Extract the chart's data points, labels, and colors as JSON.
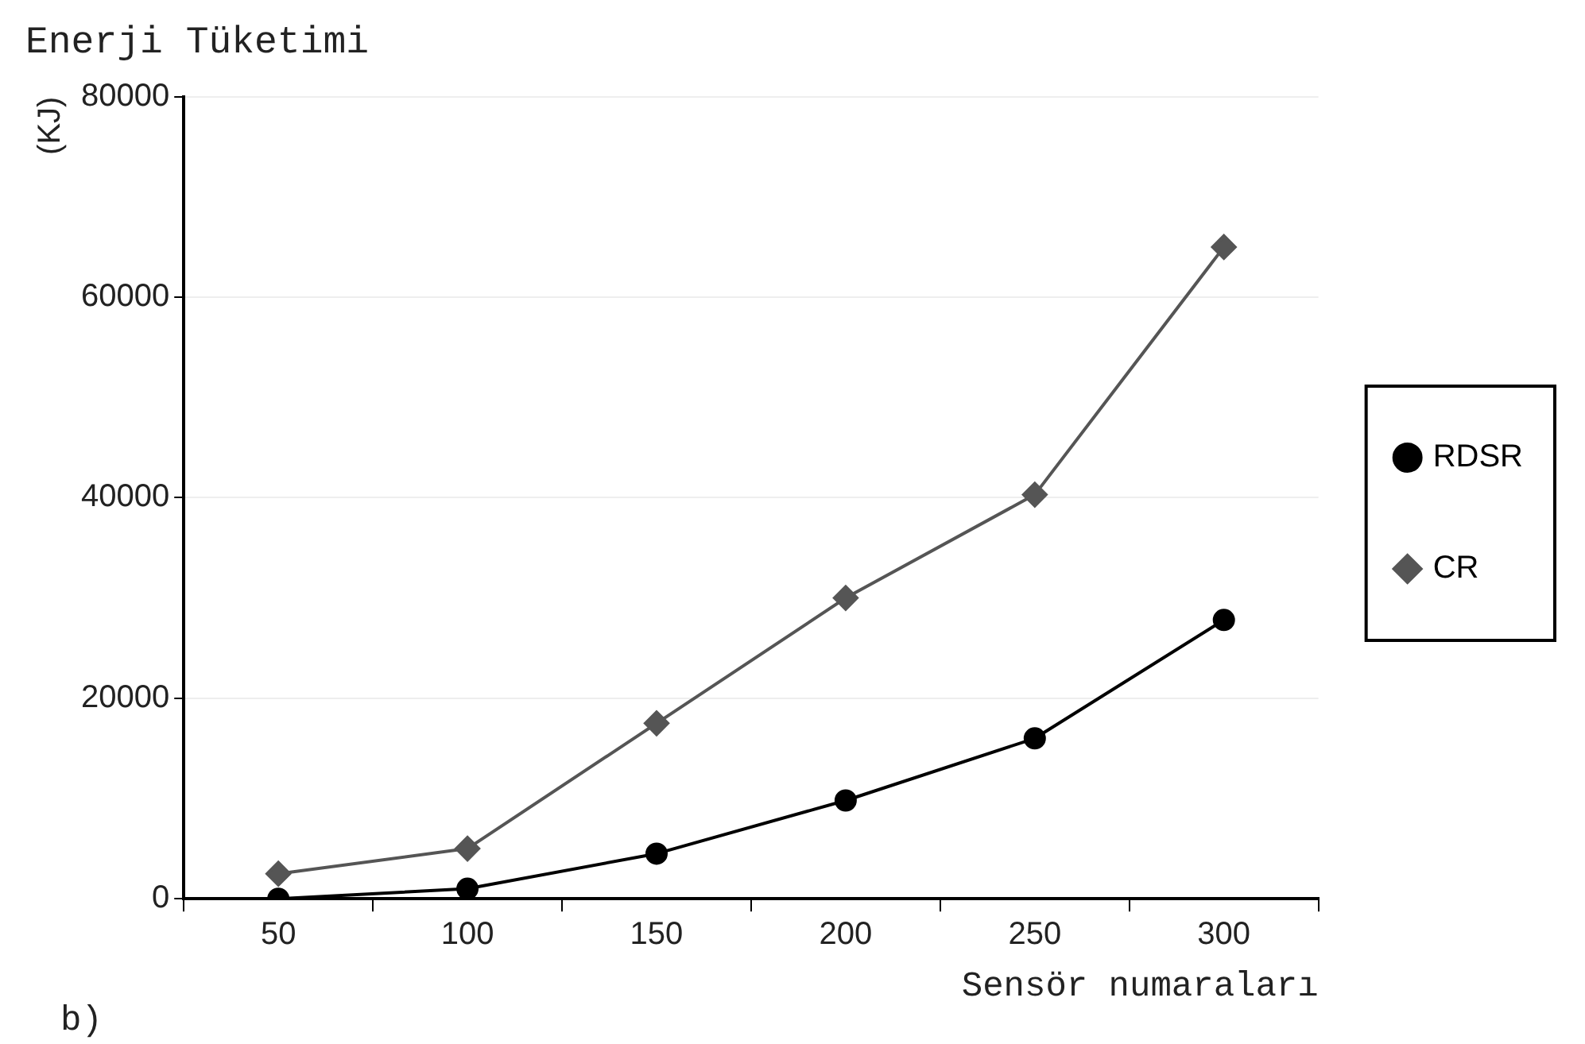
{
  "chart_data": {
    "type": "line",
    "title": "Enerji Tüketimi",
    "ylabel": "(KJ)",
    "xlabel": "Sensör numaraları",
    "annotations": [
      "b)"
    ],
    "categories": [
      "50",
      "100",
      "150",
      "200",
      "250",
      "300"
    ],
    "series": [
      {
        "name": "RDSR",
        "color": "#000000",
        "values": [
          0,
          1000,
          4500,
          9800,
          16000,
          27800
        ],
        "marker": "circle"
      },
      {
        "name": "CR",
        "color": "#555555",
        "values": [
          2500,
          5000,
          17500,
          30000,
          40300,
          65000
        ],
        "marker": "diamond"
      }
    ],
    "ylim": [
      0,
      80000
    ],
    "yticks": [
      0,
      20000,
      40000,
      60000,
      80000
    ],
    "grid": "y",
    "legend": "right",
    "line_style": "solid"
  }
}
